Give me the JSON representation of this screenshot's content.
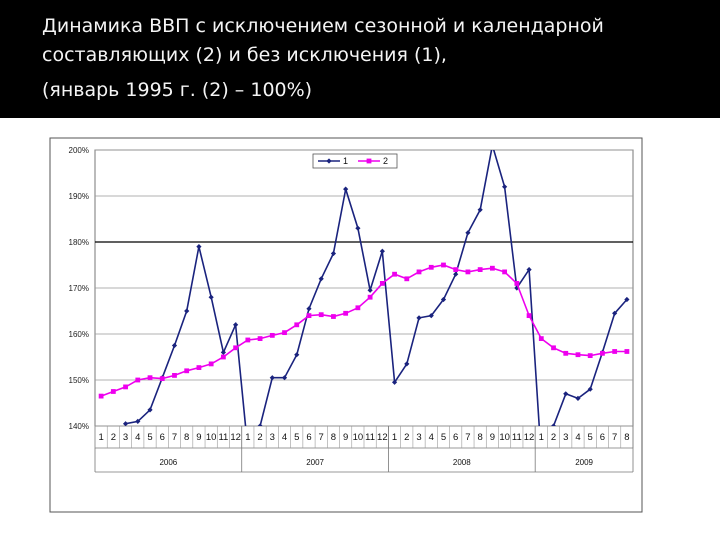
{
  "title": {
    "line1": "Динамика ВВП с исключением сезонной и календарной",
    "line2": "составляющих (2) и без исключения (1),",
    "line3": "(январь 1995 г. (2) – 100%)"
  },
  "chart_data": {
    "type": "line",
    "title": "",
    "xlabel": "",
    "ylabel": "",
    "ylim": [
      140,
      200
    ],
    "yticks": [
      "140%",
      "150%",
      "160%",
      "170%",
      "180%",
      "190%",
      "200%"
    ],
    "grid": true,
    "legend_position": "top-center",
    "x": [
      "1",
      "2",
      "3",
      "4",
      "5",
      "6",
      "7",
      "8",
      "9",
      "10",
      "11",
      "12",
      "1",
      "2",
      "3",
      "4",
      "5",
      "6",
      "7",
      "8",
      "9",
      "10",
      "11",
      "12",
      "1",
      "2",
      "3",
      "4",
      "5",
      "6",
      "7",
      "8",
      "9",
      "10",
      "11",
      "12",
      "1",
      "2",
      "3",
      "4",
      "5",
      "6",
      "7",
      "8"
    ],
    "year_groups": [
      {
        "label": "2006",
        "months": 12
      },
      {
        "label": "2007",
        "months": 12
      },
      {
        "label": "2008",
        "months": 12
      },
      {
        "label": "2009",
        "months": 8
      }
    ],
    "series": [
      {
        "name": "1",
        "color": "#1a237e",
        "marker": "diamond",
        "values": [
          null,
          null,
          140.5,
          141,
          143.5,
          150.5,
          157.5,
          165,
          179,
          168,
          156,
          162,
          135,
          140,
          150.5,
          150.5,
          155.5,
          165.5,
          172,
          177.5,
          191.5,
          183,
          169.5,
          178,
          149.5,
          153.5,
          163.5,
          164,
          167.5,
          173,
          182,
          187,
          201,
          192,
          170,
          174,
          133,
          140,
          147,
          146,
          148,
          156,
          164.5,
          167.5
        ]
      },
      {
        "name": "2",
        "color": "#ee00ee",
        "marker": "square",
        "values": [
          146.5,
          147.5,
          148.5,
          150,
          150.5,
          150.3,
          151,
          152,
          152.7,
          153.5,
          155,
          157,
          158.7,
          159,
          159.7,
          160.3,
          162,
          164,
          164.2,
          163.8,
          164.5,
          165.7,
          168,
          171,
          173,
          172,
          173.5,
          174.5,
          175,
          174,
          173.5,
          174,
          174.3,
          173.5,
          171,
          164,
          159,
          157,
          155.8,
          155.5,
          155.3,
          155.8,
          156.2,
          156.2
        ]
      }
    ]
  }
}
